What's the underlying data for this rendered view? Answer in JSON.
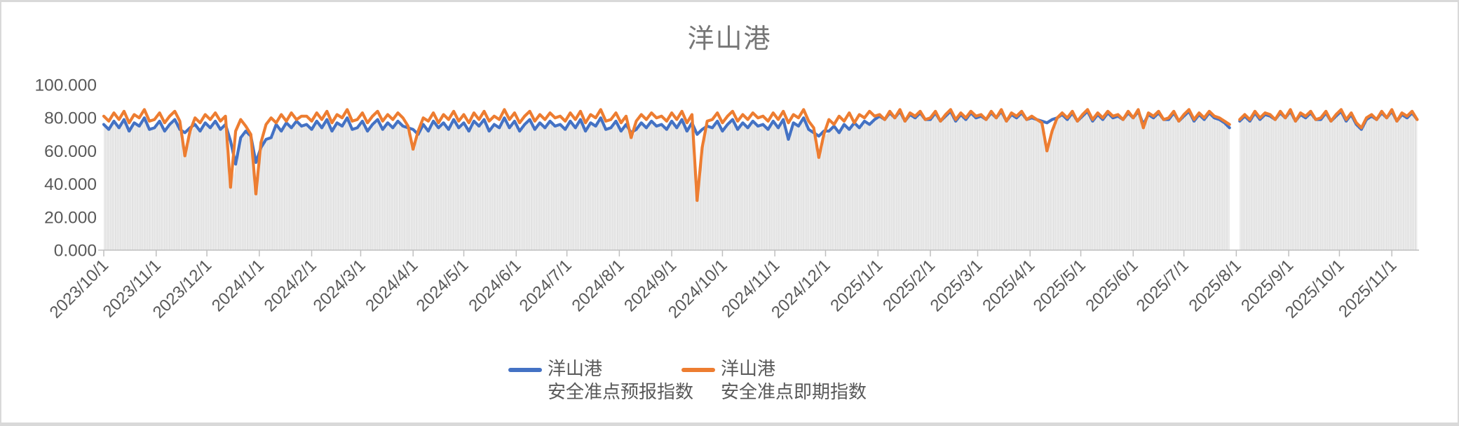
{
  "window": {
    "background": "#ffffff",
    "border_color": "#d9d9d9"
  },
  "chart": {
    "title": "洋山港",
    "title_color": "#767676",
    "axis_text_color": "#595959",
    "axis_line_color": "#bfbfbf",
    "day_bar_color": "#dddddd",
    "legend": [
      {
        "label_line1": "洋山港",
        "label_line2": "安全准点预报指数",
        "color": "#4472C4"
      },
      {
        "label_line1": "洋山港",
        "label_line2": "安全准点即期指数",
        "color": "#ED7D31"
      }
    ]
  },
  "chart_data": {
    "type": "line",
    "title": "洋山港",
    "xlabel": "",
    "ylabel": "",
    "ylim": [
      0,
      100
    ],
    "y_ticks": [
      0,
      20,
      40,
      60,
      80,
      100
    ],
    "y_tick_labels": [
      "0.000",
      "20.000",
      "40.000",
      "60.000",
      "80.000",
      "100.000"
    ],
    "x_start_date": "2023/10/1",
    "x_step_days": 3,
    "x_tick_labels": [
      "2023/10/1",
      "2023/11/1",
      "2023/12/1",
      "2024/1/1",
      "2024/2/1",
      "2024/3/1",
      "2024/4/1",
      "2024/5/1",
      "2024/6/1",
      "2024/7/1",
      "2024/8/1",
      "2024/9/1",
      "2024/10/1",
      "2024/11/1",
      "2024/12/1",
      "2025/1/1",
      "2025/2/1",
      "2025/3/1",
      "2025/4/1",
      "2025/5/1",
      "2025/6/1",
      "2025/7/1",
      "2025/8/1",
      "2025/9/1",
      "2025/10/1",
      "2025/11/1"
    ],
    "grid": false,
    "legend_position": "bottom",
    "data_gap_dates": [
      "2025/8/1"
    ],
    "background_bars": "light gray daily columns filling the area under the lower of the two lines",
    "series": [
      {
        "name": "洋山港 安全准点预报指数",
        "color": "#4472C4",
        "values": [
          76,
          73,
          78,
          74,
          79,
          72,
          77,
          75,
          80,
          73,
          74,
          78,
          72,
          76,
          79,
          73,
          71,
          74,
          76,
          72,
          77,
          74,
          78,
          73,
          76,
          66,
          52,
          68,
          72,
          69,
          53,
          62,
          67,
          68,
          76,
          72,
          77,
          74,
          78,
          75,
          76,
          73,
          78,
          74,
          79,
          72,
          77,
          75,
          80,
          73,
          74,
          78,
          72,
          76,
          79,
          73,
          77,
          74,
          78,
          75,
          74,
          73,
          70,
          76,
          72,
          78,
          74,
          77,
          73,
          79,
          74,
          77,
          72,
          78,
          75,
          79,
          72,
          76,
          74,
          80,
          74,
          78,
          72,
          76,
          79,
          73,
          77,
          74,
          78,
          75,
          76,
          73,
          78,
          74,
          79,
          72,
          77,
          75,
          80,
          73,
          74,
          78,
          72,
          76,
          71,
          73,
          77,
          74,
          78,
          75,
          76,
          73,
          78,
          74,
          79,
          72,
          77,
          70,
          73,
          75,
          74,
          78,
          72,
          76,
          79,
          73,
          77,
          74,
          78,
          75,
          76,
          73,
          78,
          74,
          79,
          67,
          77,
          75,
          80,
          73,
          71,
          69,
          72,
          72,
          75,
          71,
          76,
          73,
          77,
          74,
          78,
          76,
          79,
          81,
          79,
          83,
          80,
          84,
          78,
          82,
          80,
          83,
          79,
          79,
          83,
          78,
          81,
          84,
          78,
          82,
          79,
          83,
          80,
          81,
          79,
          83,
          80,
          84,
          78,
          82,
          80,
          83,
          79,
          80,
          79,
          78,
          77,
          79,
          80,
          82,
          79,
          83,
          78,
          81,
          84,
          78,
          82,
          79,
          83,
          80,
          81,
          79,
          83,
          80,
          84,
          76,
          82,
          80,
          83,
          79,
          79,
          83,
          78,
          81,
          84,
          78,
          82,
          79,
          83,
          80,
          79,
          77,
          74,
          null,
          78,
          81,
          78,
          83,
          79,
          82,
          81,
          79,
          83,
          80,
          84,
          78,
          82,
          80,
          83,
          79,
          79,
          83,
          78,
          81,
          84,
          78,
          82,
          76,
          73,
          79,
          81,
          79,
          83,
          80,
          84,
          78,
          82,
          80,
          83,
          79
        ]
      },
      {
        "name": "洋山港 安全准点即期指数",
        "color": "#ED7D31",
        "values": [
          81,
          78,
          83,
          79,
          84,
          77,
          82,
          80,
          85,
          78,
          79,
          83,
          77,
          81,
          84,
          78,
          57,
          72,
          80,
          77,
          82,
          79,
          83,
          78,
          81,
          38,
          72,
          79,
          75,
          70,
          34,
          65,
          76,
          80,
          77,
          82,
          78,
          83,
          79,
          81,
          81,
          78,
          83,
          79,
          84,
          77,
          82,
          80,
          85,
          78,
          79,
          83,
          77,
          81,
          84,
          78,
          82,
          79,
          83,
          80,
          75,
          61,
          72,
          80,
          78,
          83,
          77,
          82,
          79,
          84,
          78,
          82,
          77,
          83,
          79,
          84,
          78,
          81,
          79,
          85,
          79,
          83,
          77,
          81,
          84,
          78,
          82,
          79,
          83,
          80,
          81,
          78,
          83,
          79,
          84,
          77,
          82,
          80,
          85,
          78,
          79,
          83,
          77,
          81,
          68,
          78,
          82,
          79,
          83,
          80,
          81,
          78,
          83,
          79,
          84,
          77,
          82,
          30,
          62,
          78,
          79,
          83,
          77,
          81,
          84,
          78,
          82,
          79,
          83,
          80,
          81,
          78,
          83,
          79,
          84,
          77,
          82,
          80,
          85,
          78,
          74,
          56,
          70,
          79,
          76,
          81,
          78,
          83,
          77,
          82,
          80,
          84,
          81,
          82,
          79,
          84,
          80,
          85,
          78,
          83,
          81,
          84,
          79,
          80,
          84,
          78,
          82,
          85,
          79,
          83,
          80,
          84,
          81,
          82,
          79,
          84,
          80,
          85,
          78,
          83,
          81,
          84,
          79,
          81,
          79,
          77,
          60,
          72,
          80,
          83,
          80,
          84,
          78,
          82,
          85,
          79,
          83,
          80,
          84,
          81,
          82,
          79,
          84,
          80,
          85,
          74,
          83,
          81,
          84,
          79,
          80,
          84,
          78,
          82,
          85,
          79,
          83,
          80,
          84,
          81,
          80,
          78,
          76,
          null,
          79,
          82,
          79,
          84,
          80,
          83,
          82,
          79,
          84,
          80,
          85,
          78,
          83,
          81,
          84,
          79,
          80,
          84,
          78,
          82,
          85,
          79,
          83,
          77,
          74,
          80,
          82,
          79,
          84,
          80,
          85,
          78,
          83,
          81,
          84,
          79
        ]
      }
    ]
  }
}
